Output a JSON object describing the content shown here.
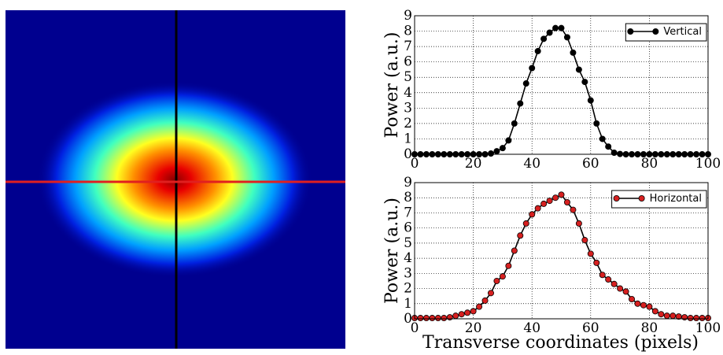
{
  "chart_data": [
    {
      "type": "line",
      "ylabel": "Power (a.u.)",
      "x": [
        0,
        2,
        4,
        6,
        8,
        10,
        12,
        14,
        16,
        18,
        20,
        22,
        24,
        26,
        28,
        30,
        32,
        34,
        36,
        38,
        40,
        42,
        44,
        46,
        48,
        50,
        52,
        54,
        56,
        58,
        60,
        62,
        64,
        66,
        68,
        70,
        72,
        74,
        76,
        78,
        80,
        82,
        84,
        86,
        88,
        90,
        92,
        94,
        96,
        98,
        100
      ],
      "series": [
        {
          "name": "Vertical",
          "color": "#000000",
          "values": [
            0,
            0,
            0,
            0,
            0,
            0,
            0,
            0,
            0,
            0,
            0,
            0,
            0,
            0.05,
            0.2,
            0.4,
            0.9,
            2.0,
            3.3,
            4.6,
            5.6,
            6.7,
            7.5,
            7.9,
            8.2,
            8.2,
            7.6,
            6.6,
            5.5,
            4.7,
            3.5,
            2.0,
            1.0,
            0.5,
            0.1,
            0.02,
            0,
            0,
            0,
            0,
            0,
            0,
            0,
            0,
            0,
            0,
            0,
            0,
            0,
            0,
            0
          ]
        }
      ],
      "xlim": [
        0,
        100
      ],
      "ylim": [
        0,
        9
      ],
      "xticks": [
        0,
        20,
        40,
        60,
        80,
        100
      ],
      "yticks": [
        0,
        1,
        2,
        3,
        4,
        5,
        6,
        7,
        8,
        9
      ],
      "grid": true,
      "legend": "upper right"
    },
    {
      "type": "line",
      "ylabel": "Power (a.u.)",
      "xlabel": "Transverse coordinates (pixels)",
      "x": [
        0,
        2,
        4,
        6,
        8,
        10,
        12,
        14,
        16,
        18,
        20,
        22,
        24,
        26,
        28,
        30,
        32,
        34,
        36,
        38,
        40,
        42,
        44,
        46,
        48,
        50,
        52,
        54,
        56,
        58,
        60,
        62,
        64,
        66,
        68,
        70,
        72,
        74,
        76,
        78,
        80,
        82,
        84,
        86,
        88,
        90,
        92,
        94,
        96,
        98,
        100
      ],
      "series": [
        {
          "name": "Horizontal",
          "color": "#d62020",
          "values": [
            0.05,
            0.05,
            0.05,
            0.05,
            0.05,
            0.05,
            0.1,
            0.2,
            0.3,
            0.4,
            0.5,
            0.8,
            1.2,
            1.7,
            2.5,
            2.8,
            3.5,
            4.5,
            5.5,
            6.3,
            6.9,
            7.3,
            7.6,
            7.8,
            8.0,
            8.2,
            7.7,
            7.2,
            6.3,
            5.2,
            4.3,
            3.7,
            2.9,
            2.6,
            2.3,
            2.0,
            1.8,
            1.3,
            1.0,
            0.9,
            0.8,
            0.5,
            0.3,
            0.2,
            0.2,
            0.15,
            0.1,
            0.05,
            0.05,
            0.05,
            0.05
          ]
        }
      ],
      "xlim": [
        0,
        100
      ],
      "ylim": [
        0,
        9
      ],
      "xticks": [
        0,
        20,
        40,
        60,
        80,
        100
      ],
      "yticks": [
        0,
        1,
        2,
        3,
        4,
        5,
        6,
        7,
        8,
        9
      ],
      "grid": true,
      "legend": "upper right"
    }
  ]
}
